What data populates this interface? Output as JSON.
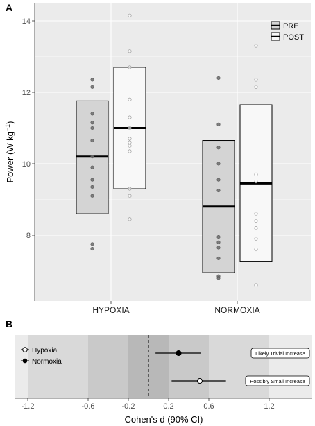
{
  "panels": {
    "a_label": "A",
    "b_label": "B"
  },
  "chart_data": [
    {
      "type": "box",
      "panel": "A",
      "ylabel": "Power (W kg",
      "ylabel_sup": "−1",
      "ylabel_close": ")",
      "ylim": [
        6.2,
        14.5
      ],
      "yticks": [
        8,
        10,
        12,
        14
      ],
      "grid": true,
      "categories": [
        "HYPOXIA",
        "NORMOXIA"
      ],
      "legend": {
        "position": "top-right",
        "entries": [
          "PRE",
          "POST"
        ]
      },
      "colors": {
        "PRE": "#d4d4d4",
        "POST": "#f8f8f8",
        "panel_bg": "#ebebeb",
        "mean": "#000000"
      },
      "series": [
        {
          "name": "PRE",
          "boxes": [
            {
              "category": "HYPOXIA",
              "low": 8.6,
              "mean": 10.2,
              "high": 11.76,
              "points": [
                12.35,
                12.15,
                11.4,
                11.15,
                11.0,
                10.65,
                10.2,
                9.9,
                9.55,
                9.35,
                9.1,
                7.75,
                7.62
              ]
            },
            {
              "category": "NORMOXIA",
              "low": 6.95,
              "mean": 8.8,
              "high": 10.65,
              "points": [
                12.4,
                11.1,
                10.45,
                10.0,
                9.55,
                9.25,
                7.95,
                7.8,
                7.65,
                7.35,
                6.85,
                6.8
              ]
            }
          ]
        },
        {
          "name": "POST",
          "boxes": [
            {
              "category": "HYPOXIA",
              "low": 9.3,
              "mean": 11.0,
              "high": 12.7,
              "points": [
                14.15,
                13.15,
                12.7,
                11.8,
                11.3,
                11.0,
                10.7,
                10.6,
                10.5,
                10.35,
                9.3,
                9.1,
                8.45
              ]
            },
            {
              "category": "NORMOXIA",
              "low": 7.27,
              "mean": 9.45,
              "high": 11.65,
              "points": [
                13.3,
                12.35,
                12.15,
                9.7,
                9.5,
                8.6,
                8.4,
                8.2,
                7.9,
                7.6,
                6.6
              ]
            }
          ]
        }
      ]
    },
    {
      "type": "forest",
      "panel": "B",
      "xlabel": "Cohen's d (90% CI)",
      "xlim": [
        -1.4,
        1.5
      ],
      "xticks": [
        -1.2,
        -0.6,
        -0.2,
        0.2,
        0.6,
        1.2
      ],
      "tick_labels": [
        "-1.2",
        "-0.6",
        "-0.2",
        "0.2",
        "0.6",
        "1.2"
      ],
      "reference_line": 0,
      "bands": [
        {
          "from": -1.2,
          "to": 1.2,
          "color": "#d9d9d9"
        },
        {
          "from": -0.6,
          "to": 0.6,
          "color": "#c9c9c9"
        },
        {
          "from": -0.2,
          "to": 0.2,
          "color": "#b8b8b8"
        }
      ],
      "legend": {
        "position": "top-left",
        "entries": [
          "Hypoxia",
          "Normoxia"
        ]
      },
      "series": [
        {
          "name": "Normoxia",
          "estimate": 0.3,
          "ci": [
            0.07,
            0.52
          ],
          "marker": "filled",
          "annotation": "Likely Trivial Increase"
        },
        {
          "name": "Hypoxia",
          "estimate": 0.51,
          "ci": [
            0.23,
            0.77
          ],
          "marker": "open",
          "annotation": "Possibly Small Increase"
        }
      ]
    }
  ]
}
